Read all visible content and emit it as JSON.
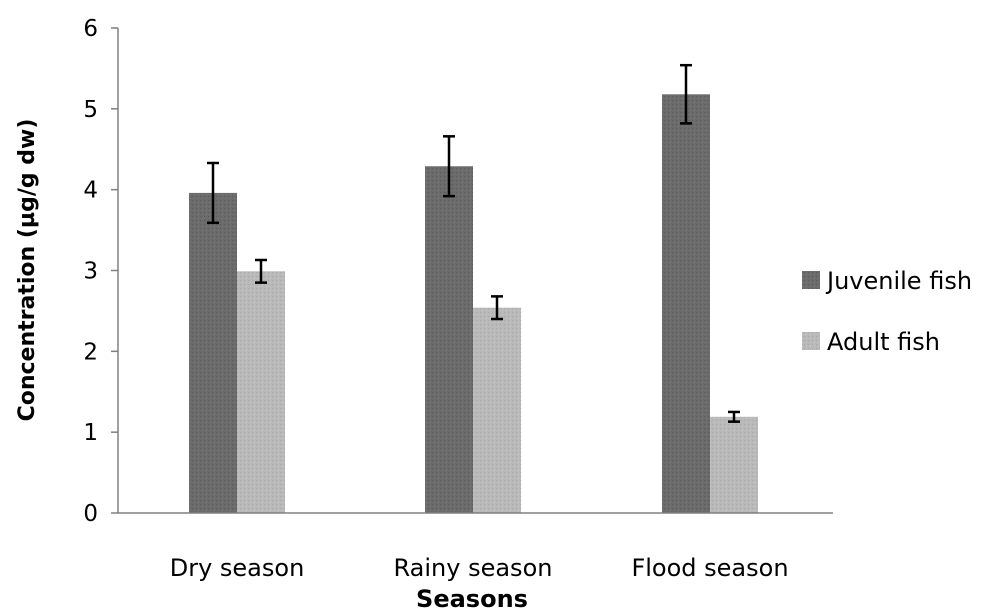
{
  "chart_data": {
    "type": "bar",
    "title": "",
    "xlabel": "Seasons",
    "ylabel": "Concentration (µg/g dw)",
    "categories": [
      "Dry season",
      "Rainy season",
      "Flood season"
    ],
    "ylim": [
      0,
      6
    ],
    "yticks": [
      0,
      1,
      2,
      3,
      4,
      5,
      6
    ],
    "grid": false,
    "legend_position": "right",
    "series": [
      {
        "name": "Juvenile fish",
        "color": "#6b6b6b",
        "values": [
          3.96,
          4.29,
          5.18
        ],
        "errors": [
          0.37,
          0.37,
          0.36
        ]
      },
      {
        "name": "Adult fish",
        "color": "#b9b9b9",
        "values": [
          2.99,
          2.54,
          1.19
        ],
        "errors": [
          0.14,
          0.14,
          0.06
        ]
      }
    ]
  }
}
